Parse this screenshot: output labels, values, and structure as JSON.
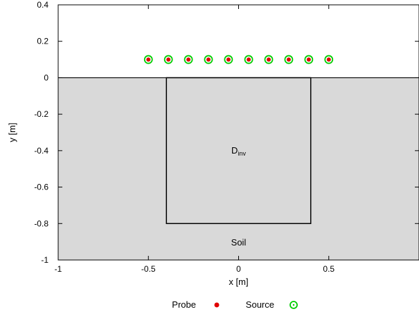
{
  "chart_data": {
    "type": "scatter",
    "xlabel": "x [m]",
    "ylabel": "y [m]",
    "xlim": [
      -1,
      1
    ],
    "ylim": [
      -1,
      0.4
    ],
    "x_ticks": [
      -1,
      -0.5,
      0,
      0.5
    ],
    "y_ticks": [
      0.4,
      0.2,
      0,
      -0.2,
      -0.4,
      -0.6,
      -0.8,
      -1
    ],
    "x_tick_labels": [
      "-1",
      "-0.5",
      "0",
      "0.5"
    ],
    "y_tick_labels": [
      "0.4",
      "0.2",
      "0",
      "-0.2",
      "-0.4",
      "-0.6",
      "-0.8",
      "-1"
    ],
    "grid": false,
    "legend_position": "bottom-center",
    "regions": {
      "soil": {
        "label": "Soil",
        "x": [
          -1,
          1
        ],
        "y": [
          -1,
          0
        ],
        "color": "#d9d9d9"
      },
      "investigation_domain": {
        "label_main": "D",
        "label_sub": "inv",
        "x": [
          -0.4,
          0.4
        ],
        "y": [
          -0.8,
          0
        ]
      }
    },
    "series": [
      {
        "name": "Probe",
        "marker": "filled-dot",
        "color": "#e00000",
        "x": [
          -0.5,
          -0.389,
          -0.278,
          -0.167,
          -0.056,
          0.056,
          0.167,
          0.278,
          0.389,
          0.5
        ],
        "y": [
          0.1,
          0.1,
          0.1,
          0.1,
          0.1,
          0.1,
          0.1,
          0.1,
          0.1,
          0.1
        ]
      },
      {
        "name": "Source",
        "marker": "circle-dot",
        "color": "#00cc00",
        "x": [
          -0.5,
          -0.389,
          -0.278,
          -0.167,
          -0.056,
          0.056,
          0.167,
          0.278,
          0.389,
          0.5
        ],
        "y": [
          0.1,
          0.1,
          0.1,
          0.1,
          0.1,
          0.1,
          0.1,
          0.1,
          0.1,
          0.1
        ]
      }
    ]
  }
}
